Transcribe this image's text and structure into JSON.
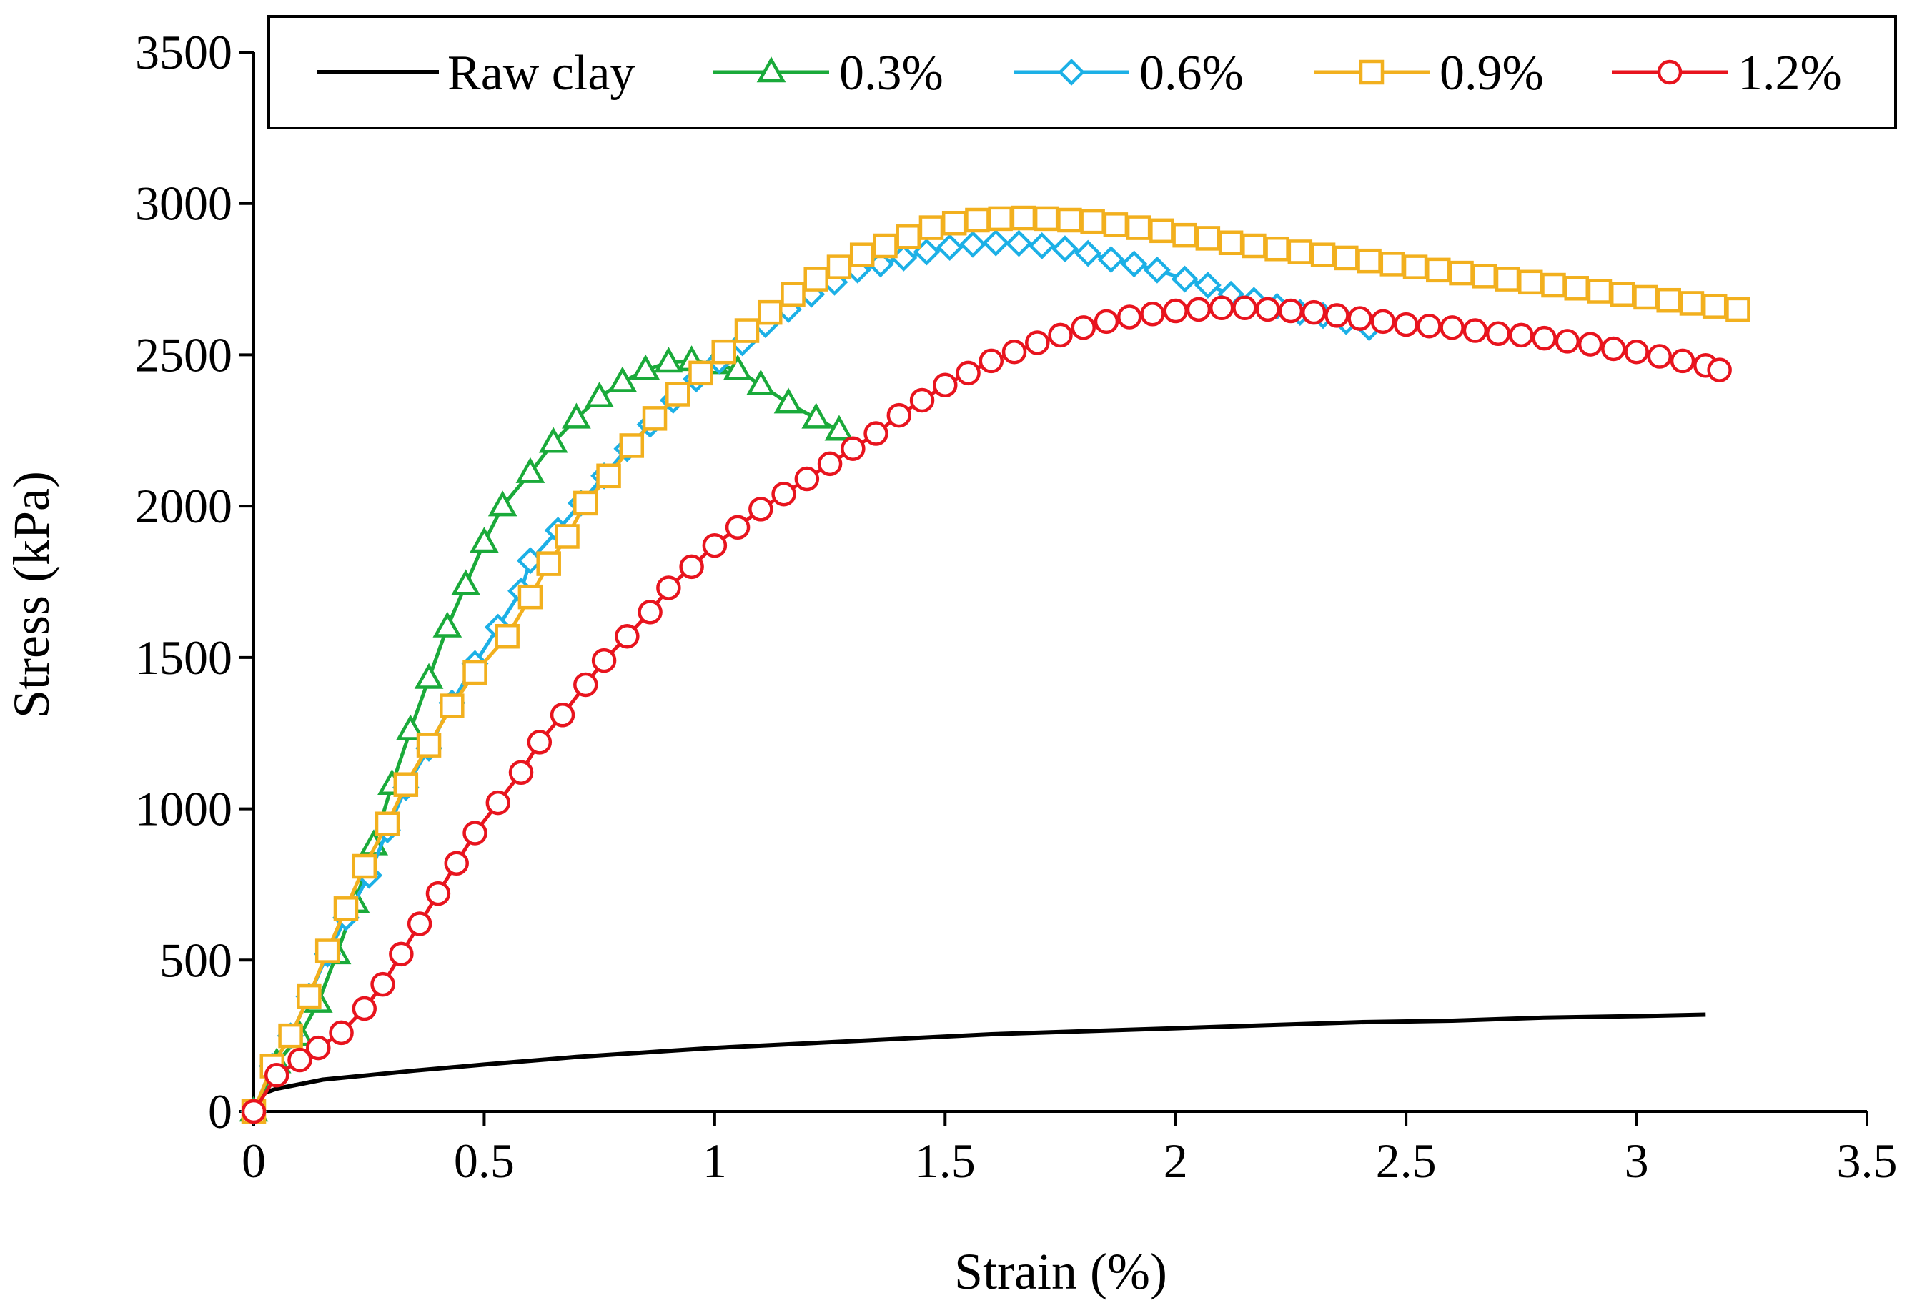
{
  "chart_data": {
    "type": "line",
    "title": "",
    "xlabel": "Strain (%)",
    "ylabel": "Stress (kPa)",
    "xlim": [
      0,
      3.5
    ],
    "ylim": [
      0,
      3500
    ],
    "x_ticks": [
      0,
      0.5,
      1,
      1.5,
      2,
      2.5,
      3,
      3.5
    ],
    "x_tick_labels": [
      "0",
      "0.5",
      "1",
      "1.5",
      "2",
      "2.5",
      "3",
      "3.5"
    ],
    "y_ticks": [
      0,
      500,
      1000,
      1500,
      2000,
      2500,
      3000,
      3500
    ],
    "y_tick_labels": [
      "0",
      "500",
      "1000",
      "1500",
      "2000",
      "2500",
      "3000",
      "3500"
    ],
    "grid": false,
    "legend_position": "top",
    "series": [
      {
        "name": "Raw clay",
        "color": "#000000",
        "marker": "none",
        "points": [
          [
            0,
            0
          ],
          [
            0.02,
            60
          ],
          [
            0.05,
            75
          ],
          [
            0.1,
            90
          ],
          [
            0.15,
            105
          ],
          [
            0.25,
            120
          ],
          [
            0.35,
            135
          ],
          [
            0.5,
            155
          ],
          [
            0.7,
            180
          ],
          [
            0.9,
            200
          ],
          [
            1.0,
            210
          ],
          [
            1.2,
            225
          ],
          [
            1.4,
            240
          ],
          [
            1.6,
            255
          ],
          [
            1.8,
            265
          ],
          [
            2.0,
            275
          ],
          [
            2.2,
            285
          ],
          [
            2.4,
            295
          ],
          [
            2.6,
            300
          ],
          [
            2.8,
            310
          ],
          [
            3.0,
            315
          ],
          [
            3.15,
            320
          ]
        ]
      },
      {
        "name": "0.3%",
        "color": "#1aaa3a",
        "marker": "triangle",
        "points": [
          [
            0,
            0
          ],
          [
            0.05,
            160
          ],
          [
            0.1,
            250
          ],
          [
            0.14,
            360
          ],
          [
            0.18,
            520
          ],
          [
            0.22,
            690
          ],
          [
            0.26,
            880
          ],
          [
            0.3,
            1080
          ],
          [
            0.34,
            1260
          ],
          [
            0.38,
            1430
          ],
          [
            0.42,
            1600
          ],
          [
            0.46,
            1740
          ],
          [
            0.5,
            1880
          ],
          [
            0.54,
            2000
          ],
          [
            0.6,
            2110
          ],
          [
            0.65,
            2210
          ],
          [
            0.7,
            2290
          ],
          [
            0.75,
            2360
          ],
          [
            0.8,
            2410
          ],
          [
            0.85,
            2450
          ],
          [
            0.9,
            2475
          ],
          [
            0.95,
            2480
          ],
          [
            1.0,
            2470
          ],
          [
            1.05,
            2450
          ],
          [
            1.1,
            2400
          ],
          [
            1.16,
            2340
          ],
          [
            1.22,
            2290
          ],
          [
            1.27,
            2250
          ]
        ]
      },
      {
        "name": "0.6%",
        "color": "#1cb0e6",
        "marker": "diamond",
        "points": [
          [
            0,
            0
          ],
          [
            0.04,
            150
          ],
          [
            0.08,
            250
          ],
          [
            0.12,
            380
          ],
          [
            0.16,
            520
          ],
          [
            0.2,
            640
          ],
          [
            0.25,
            780
          ],
          [
            0.29,
            930
          ],
          [
            0.33,
            1070
          ],
          [
            0.38,
            1200
          ],
          [
            0.43,
            1350
          ],
          [
            0.48,
            1480
          ],
          [
            0.53,
            1600
          ],
          [
            0.58,
            1720
          ],
          [
            0.6,
            1820
          ],
          [
            0.66,
            1920
          ],
          [
            0.71,
            2010
          ],
          [
            0.76,
            2100
          ],
          [
            0.81,
            2190
          ],
          [
            0.86,
            2270
          ],
          [
            0.91,
            2350
          ],
          [
            0.96,
            2420
          ],
          [
            1.01,
            2480
          ],
          [
            1.06,
            2540
          ],
          [
            1.11,
            2600
          ],
          [
            1.16,
            2650
          ],
          [
            1.21,
            2700
          ],
          [
            1.26,
            2740
          ],
          [
            1.31,
            2780
          ],
          [
            1.36,
            2800
          ],
          [
            1.41,
            2820
          ],
          [
            1.46,
            2840
          ],
          [
            1.51,
            2855
          ],
          [
            1.56,
            2865
          ],
          [
            1.61,
            2870
          ],
          [
            1.66,
            2868
          ],
          [
            1.71,
            2860
          ],
          [
            1.76,
            2850
          ],
          [
            1.81,
            2835
          ],
          [
            1.86,
            2815
          ],
          [
            1.91,
            2800
          ],
          [
            1.96,
            2780
          ],
          [
            2.02,
            2750
          ],
          [
            2.07,
            2730
          ],
          [
            2.12,
            2700
          ],
          [
            2.17,
            2680
          ],
          [
            2.22,
            2660
          ],
          [
            2.27,
            2640
          ],
          [
            2.32,
            2630
          ],
          [
            2.37,
            2610
          ],
          [
            2.42,
            2590
          ]
        ]
      },
      {
        "name": "0.9%",
        "color": "#f2b01e",
        "marker": "square",
        "points": [
          [
            0,
            0
          ],
          [
            0.04,
            150
          ],
          [
            0.08,
            250
          ],
          [
            0.12,
            380
          ],
          [
            0.16,
            530
          ],
          [
            0.2,
            670
          ],
          [
            0.24,
            810
          ],
          [
            0.29,
            950
          ],
          [
            0.33,
            1080
          ],
          [
            0.38,
            1210
          ],
          [
            0.43,
            1340
          ],
          [
            0.48,
            1450
          ],
          [
            0.55,
            1570
          ],
          [
            0.6,
            1700
          ],
          [
            0.64,
            1810
          ],
          [
            0.68,
            1900
          ],
          [
            0.72,
            2010
          ],
          [
            0.77,
            2100
          ],
          [
            0.82,
            2200
          ],
          [
            0.87,
            2290
          ],
          [
            0.92,
            2370
          ],
          [
            0.97,
            2440
          ],
          [
            1.02,
            2510
          ],
          [
            1.07,
            2580
          ],
          [
            1.12,
            2640
          ],
          [
            1.17,
            2700
          ],
          [
            1.22,
            2750
          ],
          [
            1.27,
            2790
          ],
          [
            1.32,
            2830
          ],
          [
            1.37,
            2860
          ],
          [
            1.42,
            2890
          ],
          [
            1.47,
            2920
          ],
          [
            1.52,
            2935
          ],
          [
            1.57,
            2945
          ],
          [
            1.62,
            2950
          ],
          [
            1.67,
            2952
          ],
          [
            1.72,
            2950
          ],
          [
            1.77,
            2945
          ],
          [
            1.82,
            2940
          ],
          [
            1.87,
            2930
          ],
          [
            1.92,
            2920
          ],
          [
            1.97,
            2910
          ],
          [
            2.02,
            2895
          ],
          [
            2.07,
            2885
          ],
          [
            2.12,
            2870
          ],
          [
            2.17,
            2860
          ],
          [
            2.22,
            2850
          ],
          [
            2.27,
            2840
          ],
          [
            2.32,
            2830
          ],
          [
            2.37,
            2820
          ],
          [
            2.42,
            2810
          ],
          [
            2.47,
            2800
          ],
          [
            2.52,
            2790
          ],
          [
            2.57,
            2780
          ],
          [
            2.62,
            2770
          ],
          [
            2.67,
            2760
          ],
          [
            2.72,
            2750
          ],
          [
            2.77,
            2740
          ],
          [
            2.82,
            2730
          ],
          [
            2.87,
            2720
          ],
          [
            2.92,
            2710
          ],
          [
            2.97,
            2700
          ],
          [
            3.02,
            2690
          ],
          [
            3.07,
            2680
          ],
          [
            3.12,
            2670
          ],
          [
            3.17,
            2660
          ],
          [
            3.22,
            2650
          ]
        ]
      },
      {
        "name": "1.2%",
        "color": "#e8141e",
        "marker": "circle",
        "points": [
          [
            0,
            0
          ],
          [
            0.05,
            120
          ],
          [
            0.1,
            170
          ],
          [
            0.14,
            210
          ],
          [
            0.19,
            260
          ],
          [
            0.24,
            340
          ],
          [
            0.28,
            420
          ],
          [
            0.32,
            520
          ],
          [
            0.36,
            620
          ],
          [
            0.4,
            720
          ],
          [
            0.44,
            820
          ],
          [
            0.48,
            920
          ],
          [
            0.53,
            1020
          ],
          [
            0.58,
            1120
          ],
          [
            0.62,
            1220
          ],
          [
            0.67,
            1310
          ],
          [
            0.72,
            1410
          ],
          [
            0.76,
            1490
          ],
          [
            0.81,
            1570
          ],
          [
            0.86,
            1650
          ],
          [
            0.9,
            1730
          ],
          [
            0.95,
            1800
          ],
          [
            1.0,
            1870
          ],
          [
            1.05,
            1930
          ],
          [
            1.1,
            1990
          ],
          [
            1.15,
            2040
          ],
          [
            1.2,
            2090
          ],
          [
            1.25,
            2140
          ],
          [
            1.3,
            2190
          ],
          [
            1.35,
            2240
          ],
          [
            1.4,
            2300
          ],
          [
            1.45,
            2350
          ],
          [
            1.5,
            2400
          ],
          [
            1.55,
            2440
          ],
          [
            1.6,
            2480
          ],
          [
            1.65,
            2510
          ],
          [
            1.7,
            2540
          ],
          [
            1.75,
            2565
          ],
          [
            1.8,
            2590
          ],
          [
            1.85,
            2610
          ],
          [
            1.9,
            2625
          ],
          [
            1.95,
            2635
          ],
          [
            2.0,
            2645
          ],
          [
            2.05,
            2650
          ],
          [
            2.1,
            2655
          ],
          [
            2.15,
            2655
          ],
          [
            2.2,
            2650
          ],
          [
            2.25,
            2645
          ],
          [
            2.3,
            2640
          ],
          [
            2.35,
            2630
          ],
          [
            2.4,
            2620
          ],
          [
            2.45,
            2610
          ],
          [
            2.5,
            2600
          ],
          [
            2.55,
            2595
          ],
          [
            2.6,
            2590
          ],
          [
            2.65,
            2580
          ],
          [
            2.7,
            2570
          ],
          [
            2.75,
            2565
          ],
          [
            2.8,
            2555
          ],
          [
            2.85,
            2545
          ],
          [
            2.9,
            2535
          ],
          [
            2.95,
            2520
          ],
          [
            3.0,
            2510
          ],
          [
            3.05,
            2495
          ],
          [
            3.1,
            2480
          ],
          [
            3.15,
            2465
          ],
          [
            3.18,
            2450
          ]
        ]
      }
    ]
  }
}
